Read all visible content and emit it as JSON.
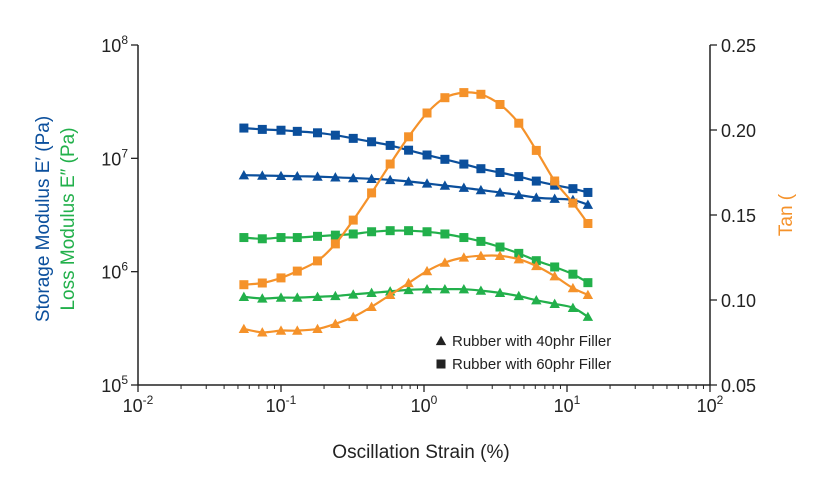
{
  "chart_data": {
    "type": "line",
    "xlabel": "Oscillation Strain (%)",
    "ylabel_storage": "Storage Modulus E′ (Pa)",
    "ylabel_loss": "Loss Modulus E″ (Pa)",
    "y2label": "Tan (",
    "xscale": "log",
    "yscale": "log",
    "xlim": [
      0.01,
      100
    ],
    "ylim": [
      100000,
      100000000
    ],
    "y2lim": [
      0.05,
      0.25
    ],
    "grid": false,
    "legend_position": "bottom-right",
    "x_ticks": [
      {
        "value": 0.01,
        "base": "10",
        "exp": "-2"
      },
      {
        "value": 0.1,
        "base": "10",
        "exp": "-1"
      },
      {
        "value": 1,
        "base": "10",
        "exp": "0"
      },
      {
        "value": 10,
        "base": "10",
        "exp": "1"
      },
      {
        "value": 100,
        "base": "10",
        "exp": "2"
      }
    ],
    "y_ticks": [
      {
        "value": 100000,
        "base": "10",
        "exp": "5"
      },
      {
        "value": 1000000,
        "base": "10",
        "exp": "6"
      },
      {
        "value": 10000000,
        "base": "10",
        "exp": "7"
      },
      {
        "value": 100000000,
        "base": "10",
        "exp": "8"
      }
    ],
    "y2_ticks": [
      "0.05",
      "0.10",
      "0.15",
      "0.20",
      "0.25"
    ],
    "legend": [
      {
        "label": "Rubber with 40phr Filler",
        "marker": "triangle"
      },
      {
        "label": "Rubber with 60phr Filler",
        "marker": "square"
      }
    ],
    "colors": {
      "storage": "#0b4f9c",
      "loss": "#22b04b",
      "tan": "#f5922a"
    },
    "x": [
      0.055,
      0.074,
      0.1,
      0.13,
      0.18,
      0.24,
      0.32,
      0.43,
      0.58,
      0.78,
      1.05,
      1.4,
      1.9,
      2.5,
      3.4,
      4.6,
      6.1,
      8.2,
      11,
      14
    ],
    "series": [
      {
        "quantity": "storage",
        "axis": "left",
        "marker": "triangle",
        "values": [
          7100000,
          7050000,
          7000000,
          6950000,
          6900000,
          6800000,
          6700000,
          6600000,
          6450000,
          6250000,
          6000000,
          5750000,
          5500000,
          5250000,
          5000000,
          4750000,
          4500000,
          4400000,
          4300000,
          3900000
        ]
      },
      {
        "quantity": "storage",
        "axis": "left",
        "marker": "square",
        "values": [
          18500000,
          18000000,
          17700000,
          17300000,
          16800000,
          16000000,
          15000000,
          14000000,
          13000000,
          11800000,
          10700000,
          9800000,
          8900000,
          8100000,
          7500000,
          6900000,
          6300000,
          5800000,
          5400000,
          5000000
        ]
      },
      {
        "quantity": "loss",
        "axis": "left",
        "marker": "triangle",
        "values": [
          600000,
          580000,
          590000,
          590000,
          600000,
          610000,
          630000,
          650000,
          670000,
          690000,
          700000,
          700000,
          700000,
          680000,
          650000,
          610000,
          560000,
          520000,
          480000,
          400000
        ]
      },
      {
        "quantity": "loss",
        "axis": "left",
        "marker": "square",
        "values": [
          2000000,
          1950000,
          2000000,
          2000000,
          2050000,
          2100000,
          2150000,
          2250000,
          2300000,
          2300000,
          2250000,
          2150000,
          2000000,
          1850000,
          1650000,
          1450000,
          1250000,
          1100000,
          950000,
          800000
        ]
      },
      {
        "quantity": "tan",
        "axis": "right",
        "marker": "triangle",
        "values": [
          0.083,
          0.081,
          0.082,
          0.082,
          0.083,
          0.086,
          0.09,
          0.096,
          0.103,
          0.11,
          0.117,
          0.122,
          0.125,
          0.126,
          0.126,
          0.124,
          0.12,
          0.114,
          0.107,
          0.103
        ]
      },
      {
        "quantity": "tan",
        "axis": "right",
        "marker": "square",
        "values": [
          0.109,
          0.11,
          0.113,
          0.117,
          0.123,
          0.133,
          0.147,
          0.163,
          0.18,
          0.196,
          0.21,
          0.219,
          0.222,
          0.221,
          0.215,
          0.204,
          0.188,
          0.17,
          0.157,
          0.145
        ]
      }
    ]
  }
}
